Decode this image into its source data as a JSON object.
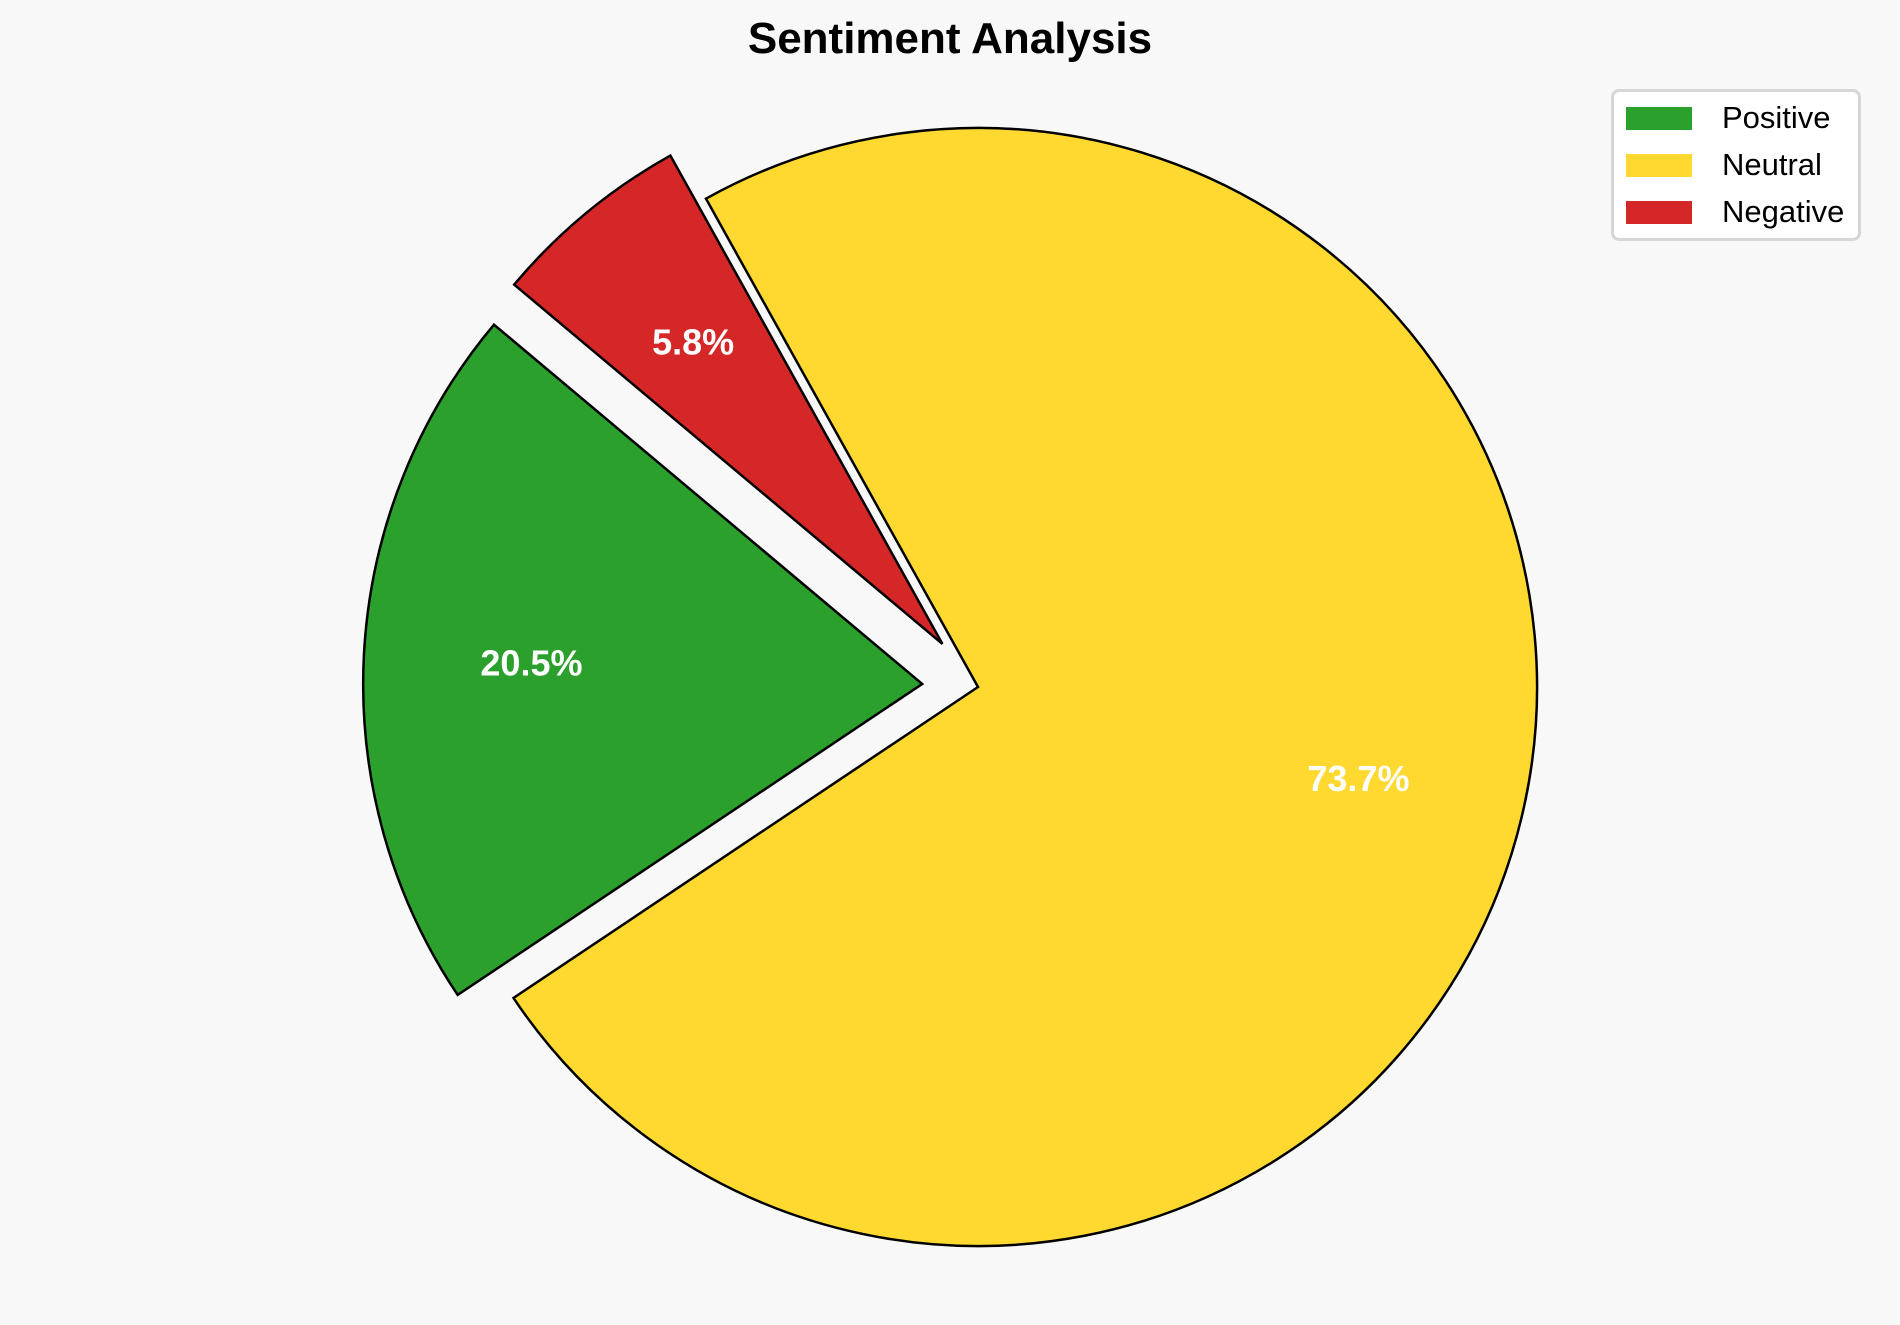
{
  "chart_data": {
    "type": "pie",
    "title": "Sentiment Analysis",
    "categories": [
      "Positive",
      "Neutral",
      "Negative"
    ],
    "values": [
      20.5,
      73.7,
      5.8
    ],
    "labels": [
      "20.5%",
      "73.7%",
      "5.8%"
    ],
    "colors": [
      "#2ca02c",
      "#ffd92f",
      "#d62728"
    ],
    "explode": [
      0.1,
      0,
      0.1
    ],
    "start_angle": 140,
    "direction": "counterclockwise",
    "edge_color": "#000000",
    "label_color": "#ffffff",
    "legend_placement": "top-right"
  }
}
